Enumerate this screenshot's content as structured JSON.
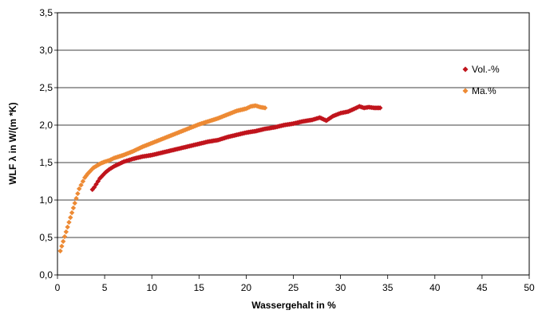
{
  "chart_data": {
    "type": "scatter",
    "title": "",
    "xlabel": "Wassergehalt in %",
    "ylabel": "WLF λ in W/(m *K)",
    "xlim": [
      0,
      50
    ],
    "ylim": [
      0,
      3.5
    ],
    "x_ticks": [
      0,
      5,
      10,
      15,
      20,
      25,
      30,
      35,
      40,
      45,
      50
    ],
    "x_tick_labels": [
      "0",
      "5",
      "10",
      "15",
      "20",
      "25",
      "30",
      "35",
      "40",
      "45",
      "50"
    ],
    "y_ticks": [
      0,
      0.5,
      1.0,
      1.5,
      2.0,
      2.5,
      3.0,
      3.5
    ],
    "y_tick_labels": [
      "0,0",
      "0,5",
      "1,0",
      "1,5",
      "2,0",
      "2,5",
      "3,0",
      "3,5"
    ],
    "grid": true,
    "legend_position": "right",
    "series": [
      {
        "name": "Vol.-%",
        "color": "#c0141c",
        "marker": "diamond",
        "points": [
          [
            3.7,
            1.14
          ],
          [
            3.9,
            1.17
          ],
          [
            4.1,
            1.21
          ],
          [
            4.3,
            1.25
          ],
          [
            4.5,
            1.29
          ],
          [
            4.8,
            1.33
          ],
          [
            5.1,
            1.37
          ],
          [
            5.5,
            1.41
          ],
          [
            6.0,
            1.45
          ],
          [
            6.5,
            1.48
          ],
          [
            7.0,
            1.51
          ],
          [
            7.5,
            1.53
          ],
          [
            8.0,
            1.55
          ],
          [
            9.0,
            1.58
          ],
          [
            10.0,
            1.6
          ],
          [
            11.0,
            1.63
          ],
          [
            12.0,
            1.66
          ],
          [
            13.0,
            1.69
          ],
          [
            14.0,
            1.72
          ],
          [
            15.0,
            1.75
          ],
          [
            16.0,
            1.78
          ],
          [
            17.0,
            1.8
          ],
          [
            18.0,
            1.84
          ],
          [
            19.0,
            1.87
          ],
          [
            20.0,
            1.9
          ],
          [
            21.0,
            1.92
          ],
          [
            22.0,
            1.95
          ],
          [
            23.0,
            1.97
          ],
          [
            24.0,
            2.0
          ],
          [
            25.0,
            2.02
          ],
          [
            26.0,
            2.05
          ],
          [
            27.0,
            2.07
          ],
          [
            27.8,
            2.1
          ],
          [
            28.5,
            2.06
          ],
          [
            29.2,
            2.12
          ],
          [
            30.0,
            2.16
          ],
          [
            30.8,
            2.18
          ],
          [
            31.5,
            2.22
          ],
          [
            32.0,
            2.25
          ],
          [
            32.5,
            2.23
          ],
          [
            33.0,
            2.24
          ],
          [
            33.6,
            2.23
          ],
          [
            34.2,
            2.23
          ]
        ]
      },
      {
        "name": "Ma.%",
        "color": "#ed8a34",
        "marker": "diamond",
        "points": [
          [
            0.3,
            0.32
          ],
          [
            2.3,
            1.15
          ],
          [
            2.5,
            1.2
          ],
          [
            2.7,
            1.25
          ],
          [
            2.9,
            1.3
          ],
          [
            3.2,
            1.35
          ],
          [
            3.5,
            1.39
          ],
          [
            3.8,
            1.43
          ],
          [
            4.2,
            1.46
          ],
          [
            4.6,
            1.49
          ],
          [
            5.0,
            1.51
          ],
          [
            5.5,
            1.53
          ],
          [
            6.0,
            1.56
          ],
          [
            7.0,
            1.6
          ],
          [
            8.0,
            1.65
          ],
          [
            9.0,
            1.71
          ],
          [
            10.0,
            1.76
          ],
          [
            11.0,
            1.81
          ],
          [
            12.0,
            1.86
          ],
          [
            13.0,
            1.91
          ],
          [
            14.0,
            1.96
          ],
          [
            15.0,
            2.01
          ],
          [
            16.0,
            2.05
          ],
          [
            17.0,
            2.09
          ],
          [
            18.0,
            2.14
          ],
          [
            19.0,
            2.19
          ],
          [
            20.0,
            2.22
          ],
          [
            20.5,
            2.25
          ],
          [
            21.0,
            2.26
          ],
          [
            21.5,
            2.24
          ],
          [
            22.0,
            2.23
          ]
        ]
      }
    ]
  }
}
